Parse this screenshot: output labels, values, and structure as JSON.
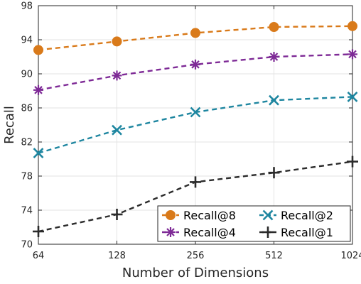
{
  "chart_data": {
    "type": "line",
    "xlabel": "Number of Dimensions",
    "ylabel": "Recall",
    "x": [
      64,
      128,
      256,
      512,
      1024
    ],
    "x_tick_labels": [
      "64",
      "128",
      "256",
      "512",
      "1024"
    ],
    "x_scale": "log2",
    "ylim": [
      70,
      98
    ],
    "y_ticks": [
      70,
      74,
      78,
      82,
      86,
      90,
      94,
      98
    ],
    "grid": true,
    "legend_placement": "bottom-right",
    "series": [
      {
        "name": "Recall@8",
        "color": "#D97A1A",
        "marker": "circle",
        "values": [
          92.8,
          93.8,
          94.8,
          95.5,
          95.6
        ]
      },
      {
        "name": "Recall@4",
        "color": "#7E2A96",
        "marker": "asterisk",
        "values": [
          88.1,
          89.8,
          91.1,
          92.0,
          92.3
        ]
      },
      {
        "name": "Recall@2",
        "color": "#1E86A0",
        "marker": "x",
        "values": [
          80.7,
          83.4,
          85.5,
          86.9,
          87.3
        ]
      },
      {
        "name": "Recall@1",
        "color": "#2B2B2B",
        "marker": "plus",
        "values": [
          71.5,
          73.5,
          77.3,
          78.4,
          79.7
        ]
      }
    ]
  }
}
